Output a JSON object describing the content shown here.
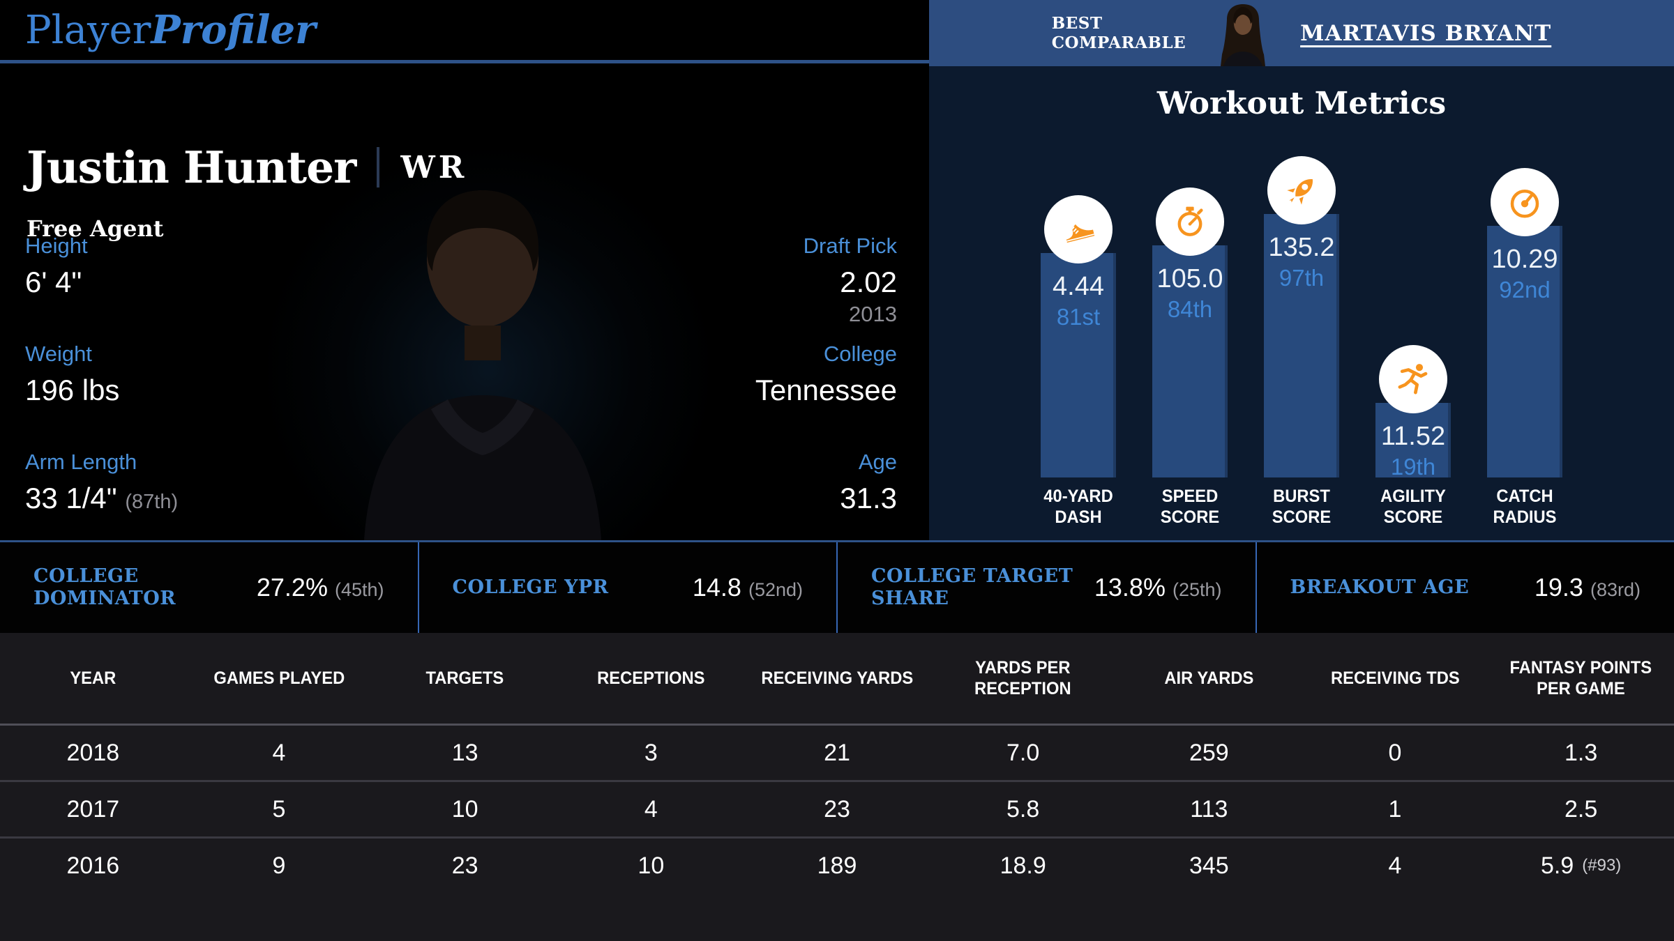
{
  "logo": {
    "part1": "Player",
    "part2": "Profiler"
  },
  "player": {
    "name": "Justin Hunter",
    "position": "WR",
    "team_status": "Free Agent"
  },
  "hero_stats_left": [
    {
      "label": "Height",
      "value": "6' 4\"",
      "note": ""
    },
    {
      "label": "Weight",
      "value": "196 lbs",
      "note": ""
    },
    {
      "label": "Arm Length",
      "value": "33 1/4\"",
      "note": "(87th)"
    }
  ],
  "hero_stats_right": [
    {
      "label": "Draft Pick",
      "value": "2.02",
      "sub": "2013"
    },
    {
      "label": "College",
      "value": "Tennessee",
      "sub": ""
    },
    {
      "label": "Age",
      "value": "31.3",
      "sub": ""
    }
  ],
  "best_comparable": {
    "label": "BEST\nCOMPARABLE",
    "player": "MARTAVIS BRYANT"
  },
  "workout": {
    "title": "Workout Metrics",
    "metrics": [
      {
        "label": "40-YARD\nDASH",
        "value": "4.44",
        "percentile": "81st",
        "pct": 81,
        "icon": "shoe-icon"
      },
      {
        "label": "SPEED\nSCORE",
        "value": "105.0",
        "percentile": "84th",
        "pct": 84,
        "icon": "stopwatch-icon"
      },
      {
        "label": "BURST\nSCORE",
        "value": "135.2",
        "percentile": "97th",
        "pct": 97,
        "icon": "rocket-icon"
      },
      {
        "label": "AGILITY\nSCORE",
        "value": "11.52",
        "percentile": "19th",
        "pct": 19,
        "icon": "runner-icon"
      },
      {
        "label": "CATCH\nRADIUS",
        "value": "10.29",
        "percentile": "92nd",
        "pct": 92,
        "icon": "gauge-icon"
      }
    ]
  },
  "chart_data": {
    "type": "bar",
    "title": "Workout Metrics",
    "categories": [
      "40-Yard Dash",
      "Speed Score",
      "Burst Score",
      "Agility Score",
      "Catch Radius"
    ],
    "values": [
      4.44,
      105.0,
      135.2,
      11.52,
      10.29
    ],
    "percentiles": [
      81,
      84,
      97,
      19,
      92
    ],
    "note": "bar heights encode percentile rank, 0-100"
  },
  "college_stats": [
    {
      "label": "COLLEGE DOMINATOR",
      "value": "27.2%",
      "percentile": "(45th)"
    },
    {
      "label": "COLLEGE YPR",
      "value": "14.8",
      "percentile": "(52nd)"
    },
    {
      "label": "COLLEGE TARGET SHARE",
      "value": "13.8%",
      "percentile": "(25th)"
    },
    {
      "label": "BREAKOUT AGE",
      "value": "19.3",
      "percentile": "(83rd)"
    }
  ],
  "table": {
    "headers": [
      "YEAR",
      "GAMES PLAYED",
      "TARGETS",
      "RECEPTIONS",
      "RECEIVING YARDS",
      "YARDS PER RECEPTION",
      "AIR YARDS",
      "RECEIVING TDS",
      "FANTASY POINTS PER GAME"
    ],
    "rows": [
      [
        "2018",
        "4",
        "13",
        "3",
        "21",
        "7.0",
        "259",
        "0",
        "1.3"
      ],
      [
        "2017",
        "5",
        "10",
        "4",
        "23",
        "5.8",
        "113",
        "1",
        "2.5"
      ],
      [
        "2016",
        "9",
        "23",
        "10",
        "189",
        "18.9",
        "345",
        "4",
        "5.9"
      ]
    ],
    "row_2016_note": "(#93)"
  }
}
